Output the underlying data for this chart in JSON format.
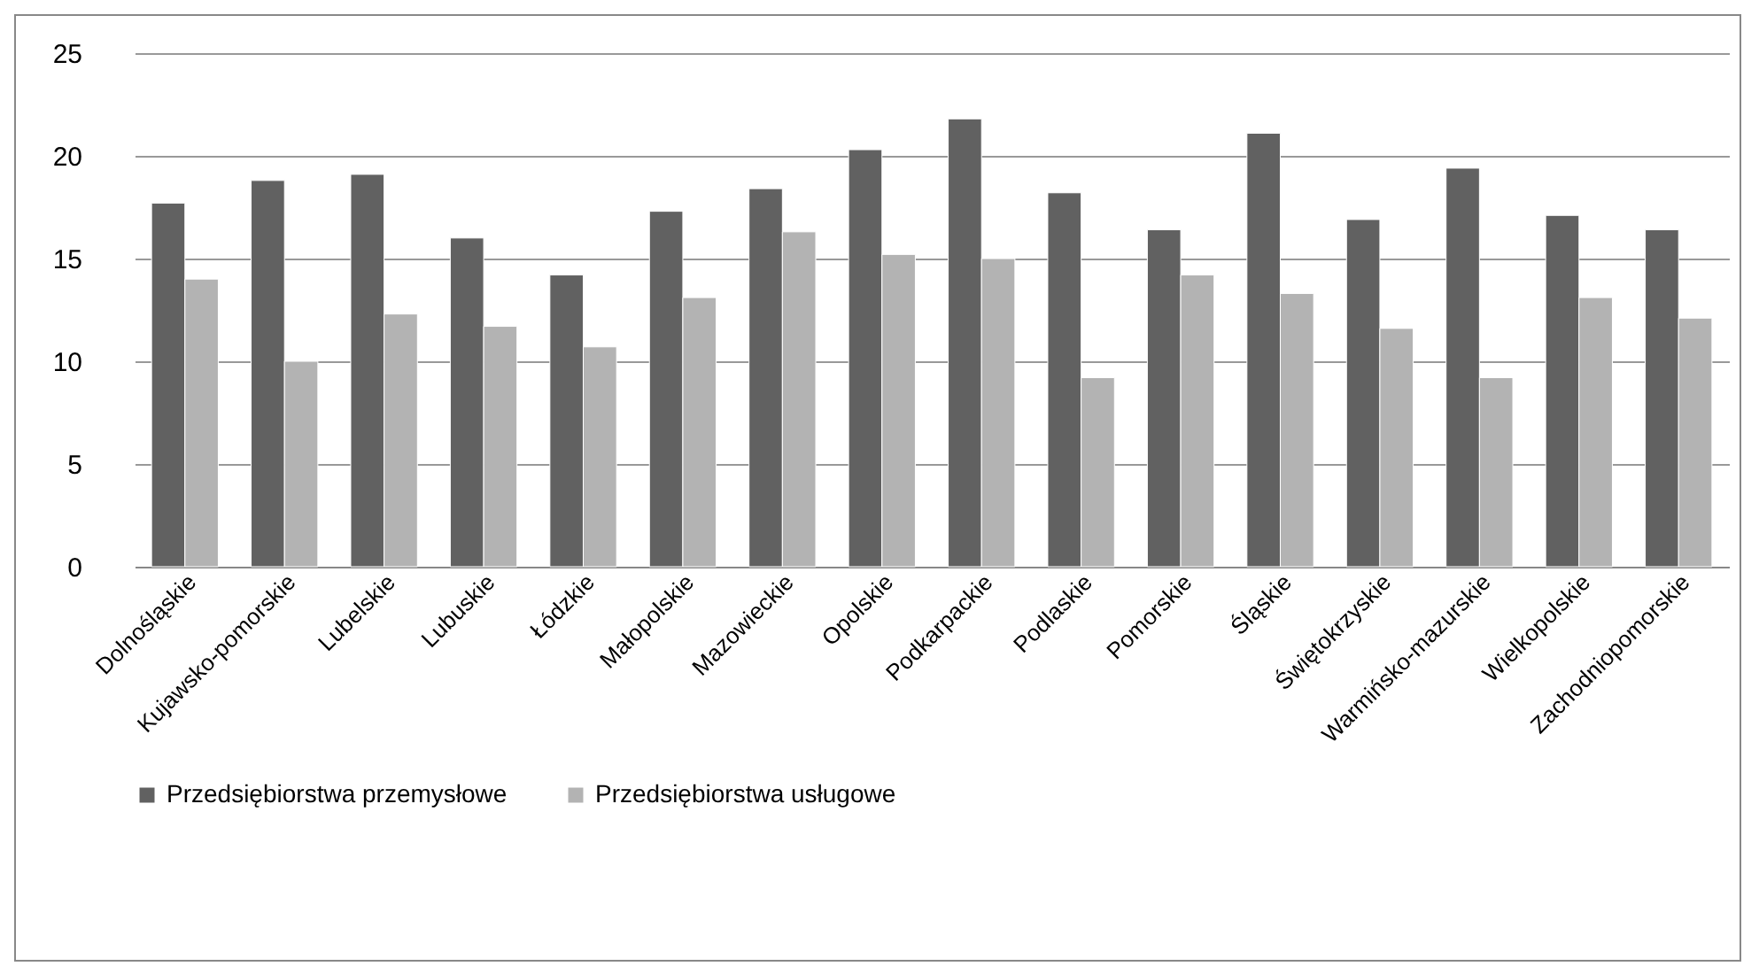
{
  "chart_data": {
    "type": "bar",
    "categories": [
      "Dolnośląskie",
      "Kujawsko-pomorskie",
      "Lubelskie",
      "Lubuskie",
      "Łódzkie",
      "Małopolskie",
      "Mazowieckie",
      "Opolskie",
      "Podkarpackie",
      "Podlaskie",
      "Pomorskie",
      "Śląskie",
      "Świętokrzyskie",
      "Warmińsko-mazurskie",
      "Wielkopolskie",
      "Zachodniopomorskie"
    ],
    "series": [
      {
        "name": "Przedsiębiorstwa przemysłowe",
        "color": "#616161",
        "values": [
          17.7,
          18.8,
          19.1,
          16.0,
          14.2,
          17.3,
          18.4,
          20.3,
          21.8,
          18.2,
          16.4,
          21.1,
          16.9,
          19.4,
          17.1,
          16.4
        ]
      },
      {
        "name": "Przedsiębiorstwa usługowe",
        "color": "#b3b3b3",
        "values": [
          14.0,
          10.0,
          12.3,
          11.7,
          10.7,
          13.1,
          16.3,
          15.2,
          15.0,
          9.2,
          14.2,
          13.3,
          11.6,
          9.2,
          13.1,
          12.1
        ]
      }
    ],
    "ylim": [
      0,
      25
    ],
    "yticks": [
      0,
      5,
      10,
      15,
      20,
      25
    ],
    "grid": "y",
    "legend": "bottom"
  }
}
